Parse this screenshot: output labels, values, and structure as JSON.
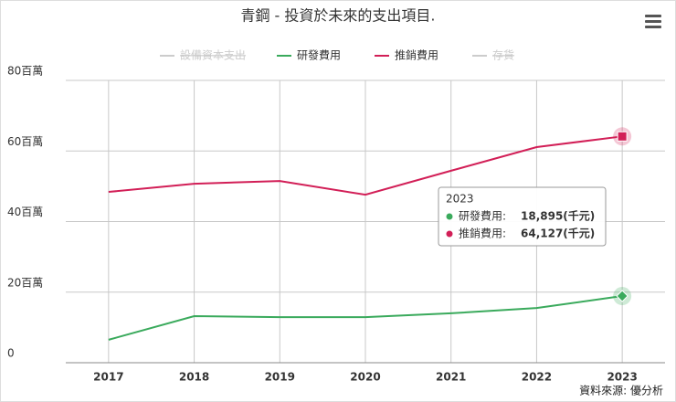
{
  "chart_data": {
    "type": "line",
    "title": "青鋼 - 投資於未來的支出項目.",
    "source": "資料來源: 優分析",
    "categories": [
      "2017",
      "2018",
      "2019",
      "2020",
      "2021",
      "2022",
      "2023"
    ],
    "series": [
      {
        "name": "設備資本支出",
        "visible": false
      },
      {
        "name": "研發費用",
        "color": "#3aaa5c",
        "marker": "diamond",
        "values": [
          6.5,
          13.2,
          12.9,
          12.9,
          14.0,
          15.5,
          18.895
        ],
        "value_labels": [
          null,
          null,
          null,
          null,
          null,
          null,
          "18,895(千元)"
        ]
      },
      {
        "name": "推銷費用",
        "color": "#d21f57",
        "marker": "square",
        "values": [
          48.4,
          50.7,
          51.5,
          47.6,
          54.4,
          61.1,
          64.127
        ],
        "value_labels": [
          null,
          null,
          null,
          null,
          null,
          null,
          "64,127(千元)"
        ]
      },
      {
        "name": "存貨",
        "visible": false
      }
    ],
    "ylim": [
      0,
      80
    ],
    "yticks": [
      0,
      {
        "value": 20,
        "label": "20百萬"
      },
      {
        "value": 40,
        "label": "40百萬"
      },
      {
        "value": 60,
        "label": "60百萬"
      },
      {
        "value": 80,
        "label": "80百萬"
      }
    ],
    "grid": true,
    "legend": "top",
    "tooltip": {
      "labels": [
        "研發費用:",
        "推銷費用:"
      ]
    }
  }
}
